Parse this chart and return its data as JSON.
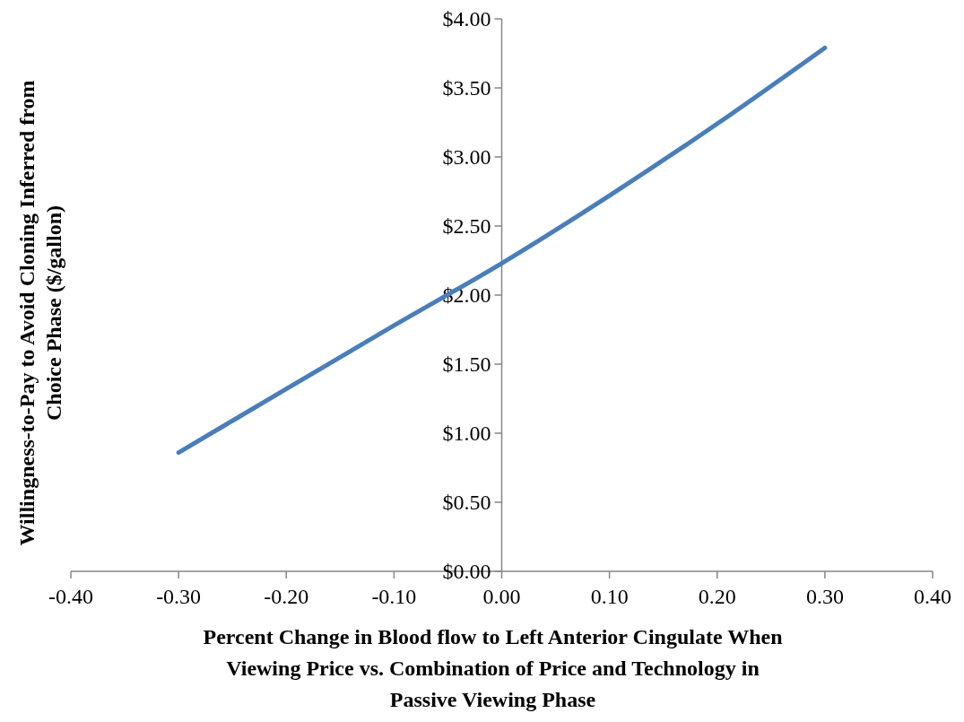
{
  "chart_data": {
    "type": "line",
    "xlabel": "Percent Change in Blood flow to Left Anterior Cingulate When Viewing Price vs. Combination of Price and Technology in Passive Viewing Phase",
    "ylabel": "Willingness-to-Pay to Avoid Cloning Inferred from Choice Phase ($/gallon)",
    "x": [
      -0.3,
      -0.2,
      -0.1,
      0,
      0.1,
      0.2,
      0.3
    ],
    "series": [
      {
        "color": "#4a7ebb",
        "values": [
          0.86,
          1.32,
          1.78,
          2.23,
          2.72,
          3.24,
          3.79
        ]
      }
    ],
    "xlim": [
      -0.4,
      0.4
    ],
    "ylim": [
      0,
      4
    ],
    "xticks": [
      {
        "value": -0.4,
        "label": "-0.40"
      },
      {
        "value": -0.3,
        "label": "-0.30"
      },
      {
        "value": -0.2,
        "label": "-0.20"
      },
      {
        "value": -0.1,
        "label": "-0.10"
      },
      {
        "value": 0,
        "label": "0.00"
      },
      {
        "value": 0.1,
        "label": "0.10"
      },
      {
        "value": 0.2,
        "label": "0.20"
      },
      {
        "value": 0.3,
        "label": "0.30"
      },
      {
        "value": 0.4,
        "label": "0.40"
      }
    ],
    "yticks": [
      {
        "value": 0,
        "label": "$0.00"
      },
      {
        "value": 0.5,
        "label": "$0.50"
      },
      {
        "value": 1,
        "label": "$1.00"
      },
      {
        "value": 1.5,
        "label": "$1.50"
      },
      {
        "value": 2,
        "label": "$2.00"
      },
      {
        "value": 2.5,
        "label": "$2.50"
      },
      {
        "value": 3,
        "label": "$3.00"
      },
      {
        "value": 3.5,
        "label": "$3.50"
      },
      {
        "value": 4,
        "label": "$4.00"
      }
    ],
    "grid": false,
    "line_style": "solid"
  }
}
